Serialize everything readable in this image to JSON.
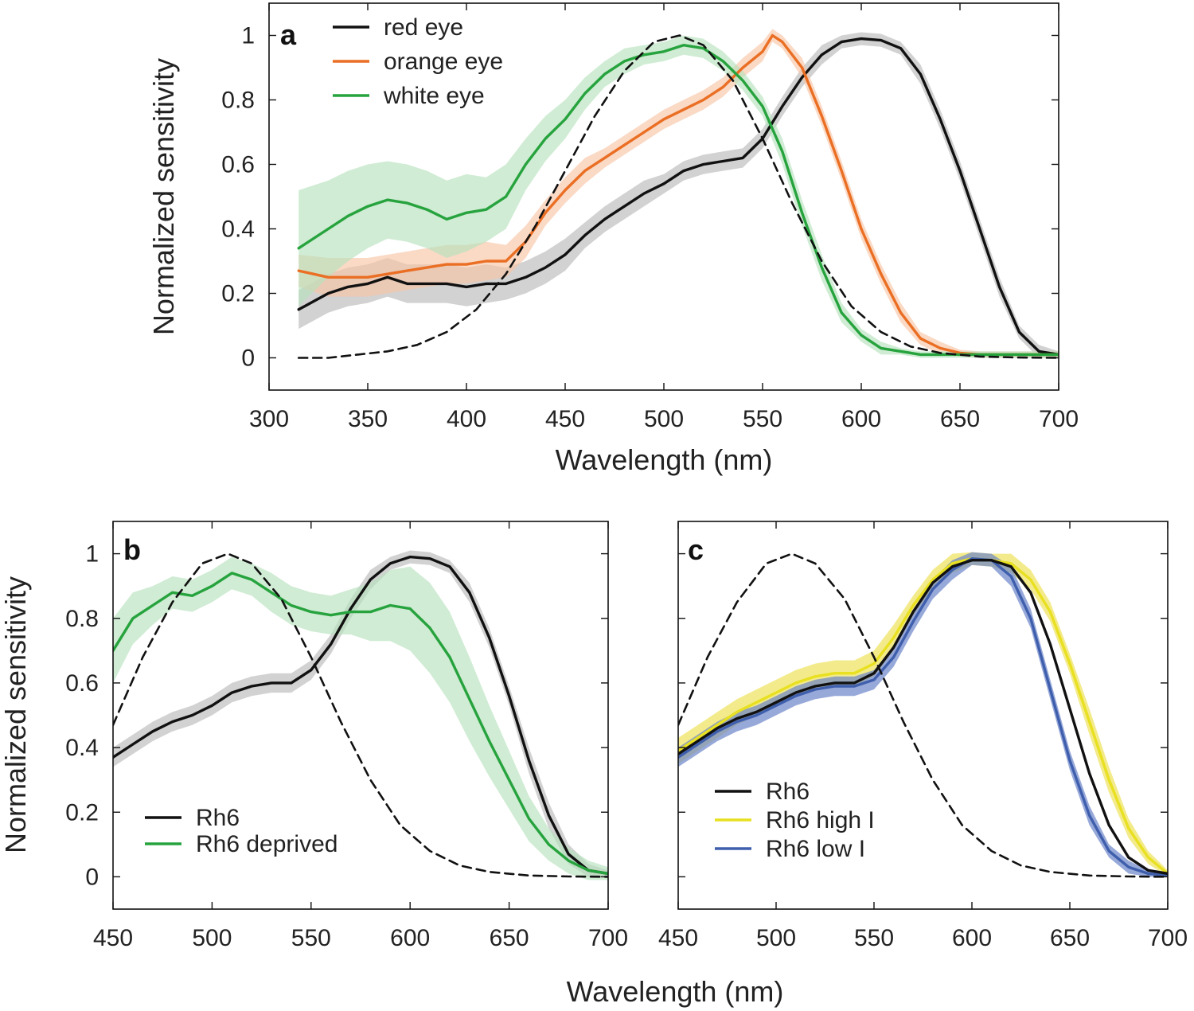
{
  "colors": {
    "black": "#111111",
    "black_band": "#b4b4b4",
    "orange": "#ea6f24",
    "orange_band": "#f7c4a6",
    "green": "#27a33e",
    "green_band": "#b7e2bd",
    "yellow": "#e8e020",
    "yellow_band": "#eee35a",
    "blue": "#3f5fad",
    "blue_band": "#6b85c9"
  },
  "chart_data": [
    {
      "panel": "a",
      "type": "line",
      "xlabel": "Wavelength (nm)",
      "ylabel": "Normalized sensitivity",
      "xlim": [
        300,
        700
      ],
      "ylim": [
        -0.1,
        1.1
      ],
      "xticks": [
        300,
        350,
        400,
        450,
        500,
        550,
        600,
        650,
        700
      ],
      "yticks": [
        0,
        0.2,
        0.4,
        0.6,
        0.8,
        1
      ],
      "legend_position": "top-left",
      "series": [
        {
          "name": "red eye",
          "color_key": "black",
          "band_key": "black_band",
          "x": [
            315,
            330,
            340,
            350,
            360,
            370,
            380,
            390,
            400,
            410,
            420,
            430,
            440,
            450,
            460,
            470,
            480,
            490,
            500,
            510,
            520,
            530,
            540,
            550,
            560,
            570,
            580,
            590,
            600,
            610,
            620,
            630,
            640,
            650,
            660,
            670,
            680,
            690,
            700
          ],
          "y": [
            0.15,
            0.2,
            0.22,
            0.23,
            0.25,
            0.23,
            0.23,
            0.23,
            0.22,
            0.23,
            0.23,
            0.25,
            0.28,
            0.32,
            0.38,
            0.43,
            0.47,
            0.51,
            0.54,
            0.58,
            0.6,
            0.61,
            0.62,
            0.68,
            0.78,
            0.87,
            0.94,
            0.98,
            0.99,
            0.985,
            0.96,
            0.88,
            0.74,
            0.58,
            0.4,
            0.22,
            0.08,
            0.02,
            0.01
          ],
          "err": [
            0.06,
            0.06,
            0.06,
            0.06,
            0.06,
            0.06,
            0.06,
            0.06,
            0.06,
            0.06,
            0.05,
            0.05,
            0.05,
            0.05,
            0.04,
            0.04,
            0.04,
            0.04,
            0.03,
            0.03,
            0.03,
            0.03,
            0.03,
            0.03,
            0.03,
            0.03,
            0.03,
            0.02,
            0.02,
            0.02,
            0.02,
            0.03,
            0.03,
            0.03,
            0.03,
            0.03,
            0.02,
            0.02,
            0.01
          ]
        },
        {
          "name": "orange eye",
          "color_key": "orange",
          "band_key": "orange_band",
          "x": [
            315,
            330,
            340,
            350,
            360,
            370,
            380,
            390,
            400,
            410,
            420,
            430,
            440,
            450,
            460,
            470,
            480,
            490,
            500,
            510,
            520,
            530,
            540,
            550,
            555,
            560,
            570,
            580,
            590,
            600,
            610,
            620,
            630,
            640,
            650,
            660,
            670,
            680,
            690,
            700
          ],
          "y": [
            0.27,
            0.25,
            0.25,
            0.25,
            0.26,
            0.27,
            0.28,
            0.29,
            0.29,
            0.3,
            0.3,
            0.36,
            0.45,
            0.52,
            0.58,
            0.62,
            0.66,
            0.7,
            0.74,
            0.77,
            0.8,
            0.84,
            0.9,
            0.95,
            1.0,
            0.98,
            0.9,
            0.75,
            0.58,
            0.4,
            0.26,
            0.14,
            0.06,
            0.03,
            0.015,
            0.01,
            0.01,
            0.01,
            0.01,
            0.01
          ],
          "err": [
            0.05,
            0.06,
            0.06,
            0.06,
            0.06,
            0.06,
            0.06,
            0.06,
            0.06,
            0.06,
            0.05,
            0.05,
            0.04,
            0.04,
            0.04,
            0.03,
            0.03,
            0.03,
            0.03,
            0.03,
            0.03,
            0.03,
            0.03,
            0.03,
            0.02,
            0.02,
            0.03,
            0.03,
            0.03,
            0.03,
            0.03,
            0.03,
            0.02,
            0.02,
            0.01,
            0.01,
            0.01,
            0.01,
            0.01,
            0.01
          ]
        },
        {
          "name": "white eye",
          "color_key": "green",
          "band_key": "green_band",
          "x": [
            315,
            330,
            340,
            350,
            360,
            370,
            380,
            390,
            400,
            410,
            420,
            430,
            440,
            450,
            460,
            470,
            480,
            490,
            500,
            510,
            520,
            530,
            540,
            550,
            560,
            570,
            580,
            590,
            600,
            610,
            620,
            630,
            640,
            650,
            660,
            670,
            680,
            690,
            700
          ],
          "y": [
            0.34,
            0.4,
            0.44,
            0.47,
            0.49,
            0.48,
            0.46,
            0.43,
            0.45,
            0.46,
            0.5,
            0.6,
            0.68,
            0.74,
            0.82,
            0.88,
            0.92,
            0.94,
            0.95,
            0.97,
            0.96,
            0.92,
            0.86,
            0.78,
            0.64,
            0.45,
            0.28,
            0.14,
            0.07,
            0.03,
            0.02,
            0.01,
            0.01,
            0.01,
            0.01,
            0.01,
            0.01,
            0.01,
            0.01
          ],
          "err": [
            0.18,
            0.15,
            0.14,
            0.13,
            0.12,
            0.12,
            0.12,
            0.12,
            0.12,
            0.1,
            0.1,
            0.08,
            0.07,
            0.06,
            0.05,
            0.04,
            0.04,
            0.03,
            0.03,
            0.03,
            0.03,
            0.03,
            0.03,
            0.03,
            0.04,
            0.04,
            0.04,
            0.03,
            0.02,
            0.02,
            0.01,
            0.01,
            0.01,
            0.01,
            0.01,
            0.01,
            0.01,
            0.01,
            0.01
          ]
        },
        {
          "name": "",
          "style": "dashed",
          "color_key": "black",
          "x": [
            315,
            330,
            345,
            360,
            375,
            390,
            405,
            420,
            435,
            450,
            465,
            480,
            495,
            508,
            520,
            535,
            550,
            565,
            580,
            595,
            610,
            625,
            640,
            660,
            680,
            700
          ],
          "y": [
            0.0,
            0.0,
            0.01,
            0.02,
            0.04,
            0.08,
            0.15,
            0.26,
            0.41,
            0.58,
            0.75,
            0.89,
            0.98,
            1.0,
            0.97,
            0.86,
            0.68,
            0.48,
            0.3,
            0.16,
            0.08,
            0.035,
            0.015,
            0.004,
            0.001,
            0.0
          ]
        }
      ]
    },
    {
      "panel": "b",
      "type": "line",
      "xlabel": "",
      "ylabel": "Normalized sensitivity",
      "xlim": [
        450,
        700
      ],
      "ylim": [
        -0.1,
        1.1
      ],
      "xticks": [
        450,
        500,
        550,
        600,
        650,
        700
      ],
      "yticks": [
        0,
        0.2,
        0.4,
        0.6,
        0.8,
        1
      ],
      "legend_position": "bottom-left",
      "series": [
        {
          "name": "Rh6",
          "color_key": "black",
          "band_key": "black_band",
          "x": [
            450,
            460,
            470,
            480,
            490,
            500,
            510,
            520,
            530,
            540,
            550,
            560,
            570,
            580,
            590,
            600,
            610,
            620,
            630,
            640,
            650,
            660,
            670,
            680,
            690,
            700
          ],
          "y": [
            0.37,
            0.41,
            0.45,
            0.48,
            0.5,
            0.53,
            0.57,
            0.59,
            0.6,
            0.6,
            0.64,
            0.72,
            0.83,
            0.92,
            0.97,
            0.99,
            0.985,
            0.96,
            0.88,
            0.74,
            0.56,
            0.36,
            0.19,
            0.07,
            0.02,
            0.01
          ],
          "err": [
            0.03,
            0.03,
            0.03,
            0.03,
            0.03,
            0.03,
            0.03,
            0.03,
            0.03,
            0.03,
            0.03,
            0.03,
            0.03,
            0.03,
            0.02,
            0.02,
            0.02,
            0.02,
            0.03,
            0.03,
            0.03,
            0.04,
            0.04,
            0.03,
            0.02,
            0.01
          ]
        },
        {
          "name": "Rh6 deprived",
          "color_key": "green",
          "band_key": "green_band",
          "x": [
            450,
            460,
            470,
            480,
            490,
            500,
            510,
            520,
            530,
            540,
            550,
            560,
            570,
            580,
            590,
            600,
            610,
            620,
            630,
            640,
            650,
            660,
            670,
            680,
            690,
            700
          ],
          "y": [
            0.7,
            0.8,
            0.84,
            0.88,
            0.87,
            0.9,
            0.94,
            0.92,
            0.88,
            0.84,
            0.82,
            0.81,
            0.82,
            0.82,
            0.84,
            0.83,
            0.77,
            0.68,
            0.55,
            0.42,
            0.3,
            0.18,
            0.1,
            0.05,
            0.02,
            0.01
          ],
          "err": [
            0.1,
            0.08,
            0.06,
            0.05,
            0.05,
            0.05,
            0.05,
            0.05,
            0.06,
            0.06,
            0.06,
            0.06,
            0.07,
            0.09,
            0.11,
            0.13,
            0.14,
            0.14,
            0.13,
            0.11,
            0.09,
            0.07,
            0.05,
            0.04,
            0.03,
            0.02
          ]
        },
        {
          "name": "",
          "style": "dashed",
          "color_key": "black",
          "x": [
            450,
            465,
            480,
            495,
            508,
            520,
            535,
            550,
            565,
            580,
            595,
            610,
            625,
            640,
            660,
            680,
            700
          ],
          "y": [
            0.47,
            0.68,
            0.85,
            0.97,
            1.0,
            0.97,
            0.86,
            0.68,
            0.48,
            0.3,
            0.16,
            0.08,
            0.035,
            0.015,
            0.004,
            0.001,
            0.0
          ]
        }
      ]
    },
    {
      "panel": "c",
      "type": "line",
      "xlabel": "",
      "ylabel": "",
      "xlim": [
        450,
        700
      ],
      "ylim": [
        -0.1,
        1.1
      ],
      "xticks": [
        450,
        500,
        550,
        600,
        650,
        700
      ],
      "yticks": [
        0,
        0.2,
        0.4,
        0.6,
        0.8,
        1
      ],
      "show_y_tick_labels": false,
      "legend_position": "bottom-left",
      "series": [
        {
          "name": "Rh6 high I",
          "color_key": "yellow",
          "band_key": "yellow_band",
          "x": [
            450,
            460,
            470,
            480,
            490,
            500,
            510,
            520,
            530,
            540,
            550,
            560,
            570,
            580,
            590,
            600,
            610,
            620,
            630,
            640,
            650,
            660,
            670,
            680,
            690,
            700
          ],
          "y": [
            0.39,
            0.43,
            0.47,
            0.51,
            0.54,
            0.57,
            0.6,
            0.62,
            0.63,
            0.63,
            0.66,
            0.74,
            0.84,
            0.92,
            0.97,
            0.985,
            0.98,
            0.97,
            0.92,
            0.82,
            0.66,
            0.48,
            0.3,
            0.15,
            0.06,
            0.01
          ],
          "err": [
            0.04,
            0.04,
            0.04,
            0.04,
            0.04,
            0.04,
            0.04,
            0.04,
            0.04,
            0.04,
            0.04,
            0.04,
            0.03,
            0.03,
            0.03,
            0.02,
            0.02,
            0.03,
            0.03,
            0.03,
            0.03,
            0.04,
            0.04,
            0.03,
            0.02,
            0.01
          ]
        },
        {
          "name": "Rh6 low I",
          "color_key": "blue",
          "band_key": "blue_band",
          "x": [
            450,
            460,
            470,
            480,
            490,
            500,
            510,
            520,
            530,
            540,
            550,
            560,
            570,
            580,
            590,
            600,
            610,
            620,
            630,
            640,
            650,
            660,
            670,
            680,
            690,
            700
          ],
          "y": [
            0.37,
            0.41,
            0.45,
            0.48,
            0.5,
            0.53,
            0.56,
            0.58,
            0.59,
            0.59,
            0.61,
            0.68,
            0.79,
            0.89,
            0.95,
            0.985,
            0.98,
            0.93,
            0.8,
            0.58,
            0.36,
            0.19,
            0.08,
            0.03,
            0.01,
            0.005
          ],
          "err": [
            0.03,
            0.03,
            0.03,
            0.03,
            0.03,
            0.03,
            0.03,
            0.03,
            0.03,
            0.03,
            0.03,
            0.03,
            0.03,
            0.03,
            0.03,
            0.02,
            0.02,
            0.03,
            0.03,
            0.03,
            0.03,
            0.03,
            0.02,
            0.02,
            0.01,
            0.005
          ]
        },
        {
          "name": "Rh6",
          "color_key": "black",
          "x": [
            450,
            460,
            470,
            480,
            490,
            500,
            510,
            520,
            530,
            540,
            550,
            560,
            570,
            580,
            590,
            600,
            610,
            620,
            630,
            640,
            650,
            660,
            670,
            680,
            690,
            700
          ],
          "y": [
            0.38,
            0.42,
            0.46,
            0.49,
            0.51,
            0.54,
            0.57,
            0.59,
            0.6,
            0.6,
            0.63,
            0.71,
            0.82,
            0.91,
            0.96,
            0.98,
            0.98,
            0.96,
            0.88,
            0.72,
            0.52,
            0.32,
            0.16,
            0.06,
            0.02,
            0.01
          ]
        },
        {
          "name": "",
          "style": "dashed",
          "color_key": "black",
          "x": [
            450,
            465,
            480,
            495,
            508,
            520,
            535,
            550,
            565,
            580,
            595,
            610,
            625,
            640,
            660,
            680,
            700
          ],
          "y": [
            0.47,
            0.68,
            0.85,
            0.97,
            1.0,
            0.97,
            0.86,
            0.68,
            0.48,
            0.3,
            0.16,
            0.08,
            0.035,
            0.015,
            0.004,
            0.001,
            0.0
          ]
        }
      ],
      "legend_order": [
        "Rh6",
        "Rh6 high I",
        "Rh6 low I"
      ]
    }
  ],
  "shared_xlabel_bottom": "Wavelength (nm)"
}
